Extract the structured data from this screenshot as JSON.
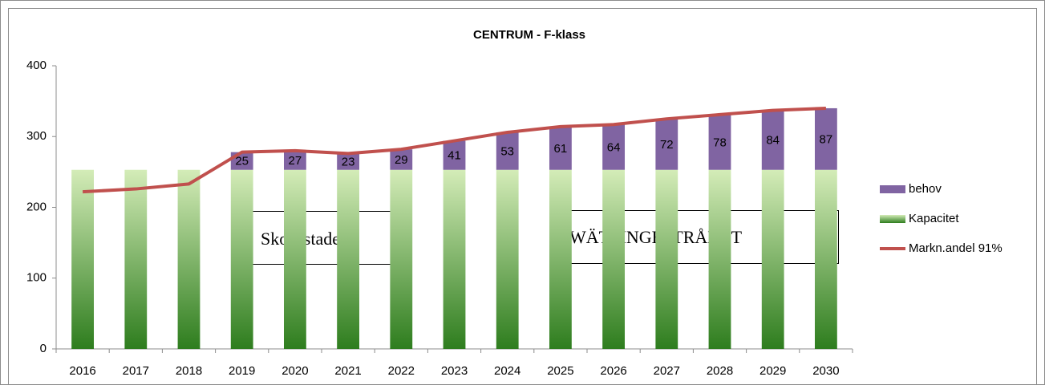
{
  "chart_data": {
    "type": "bar",
    "title": "CENTRUM - F-klass",
    "categories": [
      "2016",
      "2017",
      "2018",
      "2019",
      "2020",
      "2021",
      "2022",
      "2023",
      "2024",
      "2025",
      "2026",
      "2027",
      "2028",
      "2029",
      "2030"
    ],
    "series": [
      {
        "name": "Kapacitet",
        "type": "bar",
        "color": "#2e7d1e",
        "values": [
          253,
          253,
          253,
          253,
          253,
          253,
          253,
          253,
          253,
          253,
          253,
          253,
          253,
          253,
          253
        ]
      },
      {
        "name": "behov",
        "type": "bar",
        "color": "#8064a2",
        "values": [
          null,
          null,
          null,
          25,
          27,
          23,
          29,
          41,
          53,
          61,
          64,
          72,
          78,
          84,
          87
        ]
      },
      {
        "name": "Markn.andel  91%",
        "type": "line",
        "color": "#c0504d",
        "values": [
          222,
          226,
          233,
          278,
          280,
          276,
          282,
          294,
          306,
          314,
          317,
          325,
          331,
          337,
          340
        ]
      }
    ],
    "stacked": true,
    "ylim": [
      0,
      400
    ],
    "yticks": [
      0,
      100,
      200,
      300,
      400
    ],
    "grid": false,
    "legend": "right",
    "annotations": [
      "Skogsstaden",
      "WÄTTINGESTRÅKET"
    ]
  }
}
